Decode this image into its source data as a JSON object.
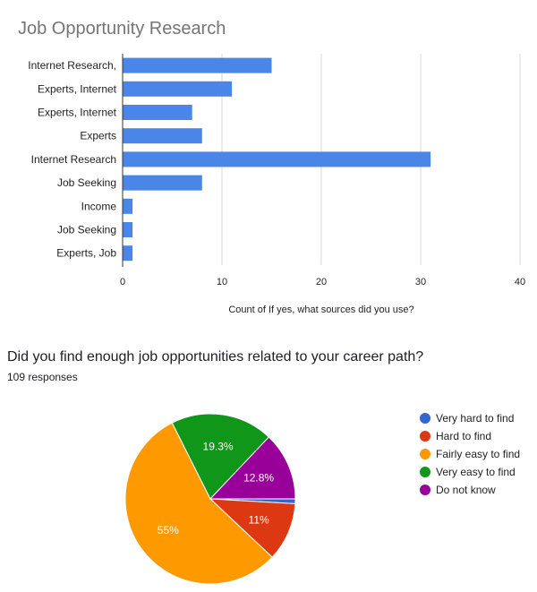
{
  "chart_data": [
    {
      "type": "bar",
      "orientation": "horizontal",
      "title": "Job Opportunity Research",
      "xlabel": "Count of If yes, what sources did you use?",
      "ylabel": "",
      "categories": [
        "Internet Research,",
        "Experts, Internet",
        "Experts, Internet",
        "Experts",
        "Internet Research",
        "Job Seeking",
        "Income",
        "Job Seeking",
        "Experts, Job"
      ],
      "values": [
        15,
        11,
        7,
        8,
        31,
        8,
        1,
        1,
        1
      ],
      "xlim": [
        0,
        40
      ],
      "xticks": [
        "0",
        "10",
        "20",
        "30",
        "40"
      ],
      "grid": true,
      "color": "#4a86e8"
    },
    {
      "type": "pie",
      "title": "Did you find enough job opportunities related to your career path?",
      "subtitle": "109 responses",
      "legend_position": "right",
      "slices": [
        {
          "label": "Very hard to find",
          "value": 0.9,
          "display": "",
          "color": "#3366cc"
        },
        {
          "label": "Hard to find",
          "value": 11,
          "display": "11%",
          "color": "#dc3912"
        },
        {
          "label": "Fairly easy to find",
          "value": 55,
          "display": "55%",
          "color": "#ff9900"
        },
        {
          "label": "Very easy to find",
          "value": 19.3,
          "display": "19.3%",
          "color": "#109618"
        },
        {
          "label": "Do not know",
          "value": 12.8,
          "display": "12.8%",
          "color": "#990099"
        }
      ]
    }
  ]
}
